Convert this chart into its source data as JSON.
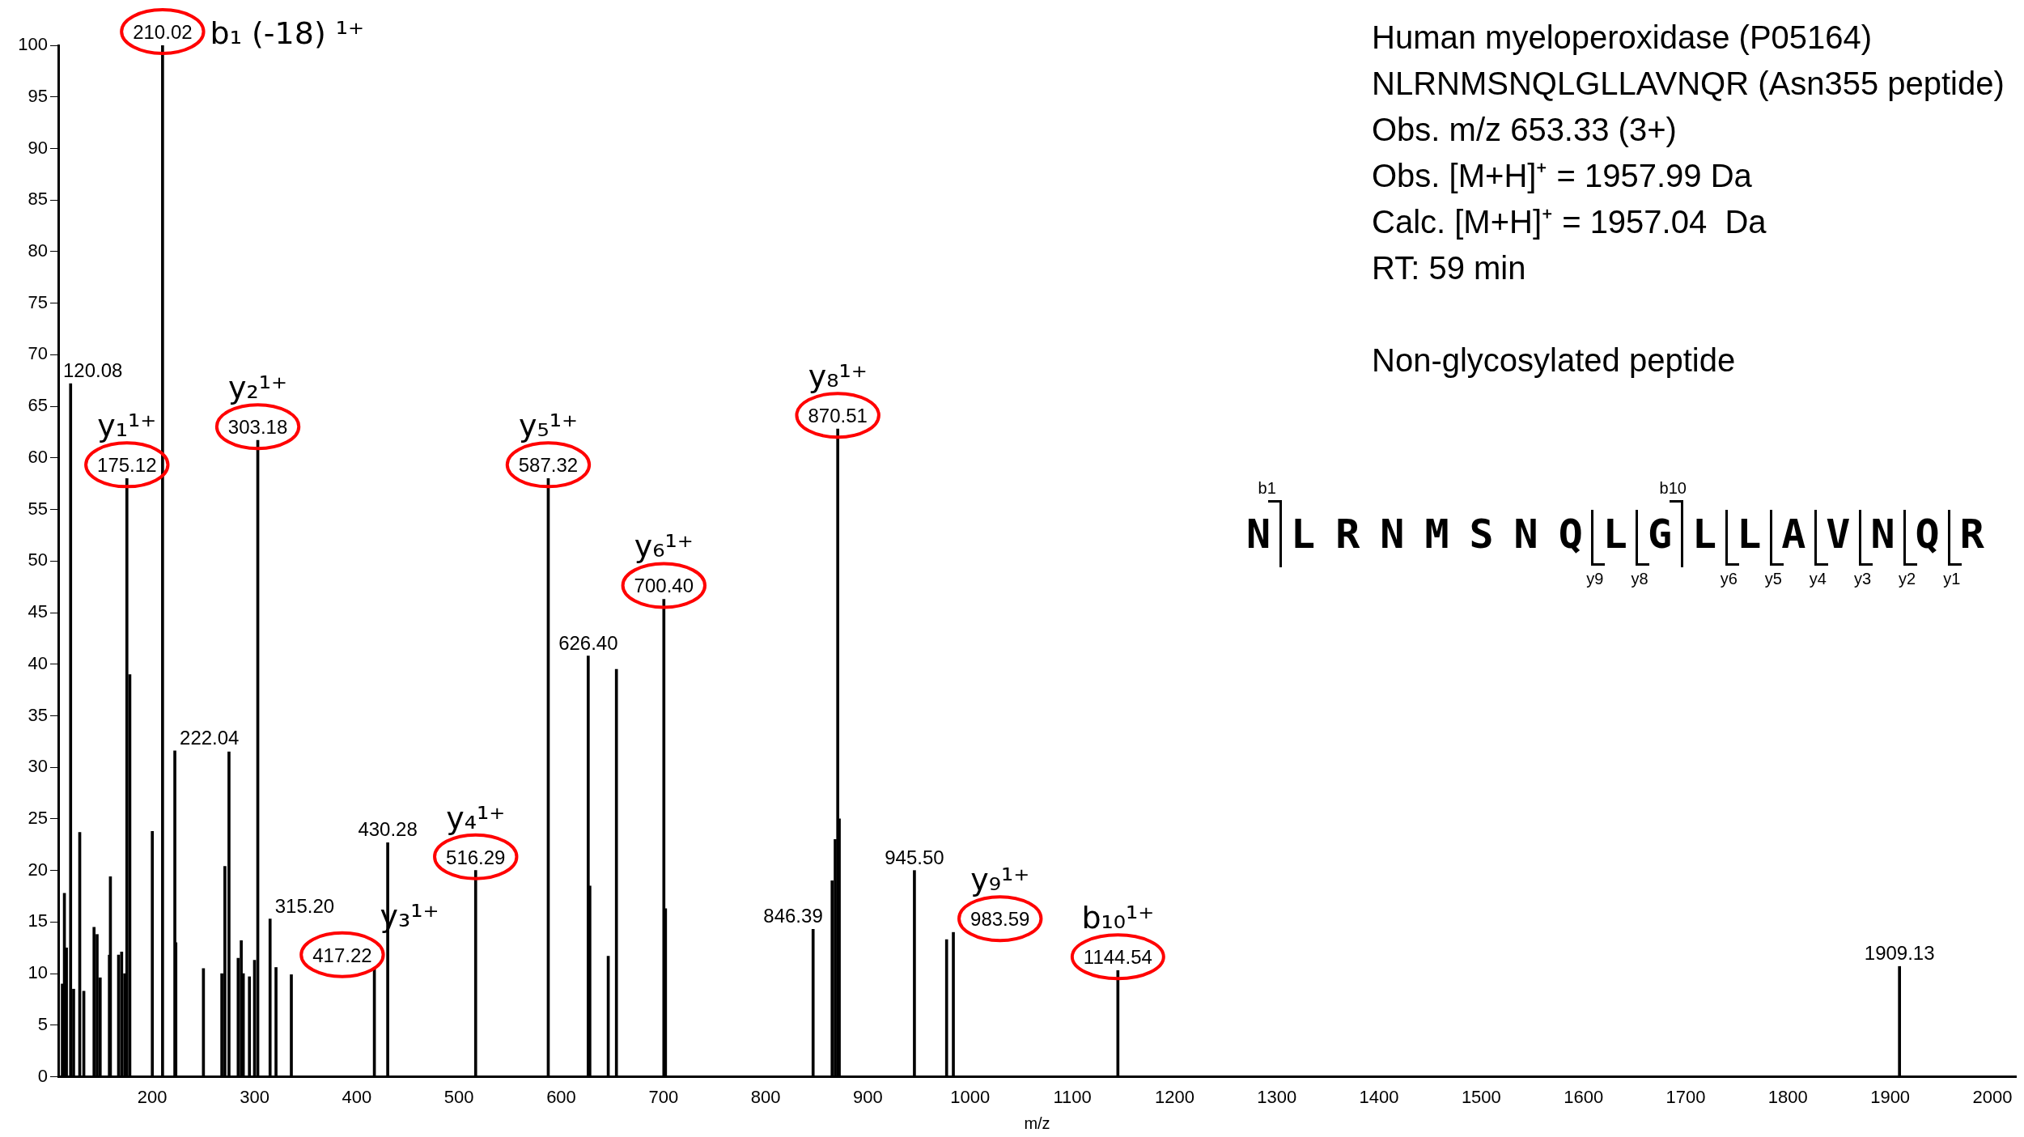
{
  "chart_data": {
    "type": "bar",
    "xlabel": "m/z",
    "color": "#000000",
    "x": [
      112,
      114,
      116,
      120.08,
      123,
      129,
      133,
      143,
      146,
      149,
      158,
      159,
      167,
      170,
      173,
      175.12,
      178,
      200,
      210.02,
      222.04,
      223,
      250,
      268,
      271,
      275,
      284,
      287,
      289,
      295,
      300,
      303.18,
      315.2,
      321,
      336,
      417.22,
      430.28,
      516.29,
      587.32,
      626.4,
      628,
      646,
      654,
      700.4,
      702,
      846.39,
      865,
      868,
      870.51,
      872,
      945.5,
      977,
      983.59,
      1144.54,
      1909.13
    ],
    "values": [
      9,
      17.8,
      12.5,
      67.2,
      8.5,
      23.7,
      8.3,
      14.5,
      13.8,
      9.6,
      11.8,
      19.4,
      11.8,
      12.1,
      10,
      58,
      39,
      23.8,
      100,
      31.6,
      13,
      10.5,
      10,
      20.4,
      31.5,
      11.5,
      13.2,
      10,
      9.7,
      11.3,
      61.7,
      15.3,
      10.6,
      9.9,
      10.5,
      22.7,
      20,
      58,
      40.8,
      18.5,
      11.7,
      39.5,
      46.3,
      16.3,
      14.3,
      19,
      23,
      62.8,
      25,
      20,
      13.3,
      14,
      10.3,
      10.7
    ],
    "xlim": [
      108,
      2023
    ],
    "xticks": [
      200,
      300,
      400,
      500,
      600,
      700,
      800,
      900,
      1000,
      1100,
      1200,
      1300,
      1400,
      1500,
      1600,
      1700,
      1800,
      1900,
      2000
    ],
    "ylim": [
      0,
      100
    ],
    "yticks": [
      0,
      5,
      10,
      15,
      20,
      25,
      30,
      35,
      40,
      45,
      50,
      55,
      60,
      65,
      70,
      75,
      80,
      85,
      90,
      95,
      100
    ],
    "annotations": [
      "Human myeloperoxidase (P05164)",
      "NLRNMSNQLGLLAVNQR (Asn355 peptide)",
      "Obs. m/z 653.33 (3+)",
      "Obs. [M+H]⁺ = 1957.99 Da",
      "Calc. [M+H]⁺ = 1957.04  Da",
      "RT: 59 min",
      "Non-glycosylated peptide",
      "NLRNMSNQLGLLAVNQR",
      "b1",
      "b10",
      "y9",
      "y8",
      "y6",
      "y5",
      "y4",
      "y3",
      "y2",
      "y1",
      {
        "text": "120.08",
        "x": 120.08,
        "y": 67.2
      },
      {
        "text": "175.12",
        "x": 175.12,
        "y": 58
      },
      {
        "text": "y₁¹⁺",
        "x": 175.12,
        "y": 58
      },
      {
        "text": "210.02",
        "x": 210.02,
        "y": 100
      },
      {
        "text": "b₁ (-18) ¹⁺",
        "x": 210.02,
        "y": 100
      },
      {
        "text": "222.04",
        "x": 222.04,
        "y": 31.6
      },
      {
        "text": "303.18",
        "x": 303.18,
        "y": 61.7
      },
      {
        "text": "y₂¹⁺",
        "x": 303.18,
        "y": 61.7
      },
      {
        "text": "315.20",
        "x": 315.2,
        "y": 15.3
      },
      {
        "text": "417.22",
        "x": 417.22,
        "y": 10.5
      },
      {
        "text": "y₃¹⁺",
        "x": 417.22,
        "y": 10.5
      },
      {
        "text": "430.28",
        "x": 430.28,
        "y": 22.7
      },
      {
        "text": "516.29",
        "x": 516.29,
        "y": 20
      },
      {
        "text": "y₄¹⁺",
        "x": 516.29,
        "y": 20
      },
      {
        "text": "587.32",
        "x": 587.32,
        "y": 58
      },
      {
        "text": "y₅¹⁺",
        "x": 587.32,
        "y": 58
      },
      {
        "text": "626.40",
        "x": 626.4,
        "y": 40.8
      },
      {
        "text": "700.40",
        "x": 700.4,
        "y": 46.3
      },
      {
        "text": "y₆¹⁺",
        "x": 700.4,
        "y": 46.3
      },
      {
        "text": "846.39",
        "x": 846.39,
        "y": 14.3
      },
      {
        "text": "870.51",
        "x": 870.51,
        "y": 62.8
      },
      {
        "text": "y₈¹⁺",
        "x": 870.51,
        "y": 62.8
      },
      {
        "text": "945.50",
        "x": 945.5,
        "y": 20
      },
      {
        "text": "983.59",
        "x": 983.59,
        "y": 14
      },
      {
        "text": "y₉¹⁺",
        "x": 983.59,
        "y": 14
      },
      {
        "text": "1144.54",
        "x": 1144.54,
        "y": 10.3
      },
      {
        "text": "b₁₀¹⁺",
        "x": 1144.54,
        "y": 10.3
      },
      {
        "text": "1909.13",
        "x": 1909.13,
        "y": 10.7
      }
    ]
  }
}
